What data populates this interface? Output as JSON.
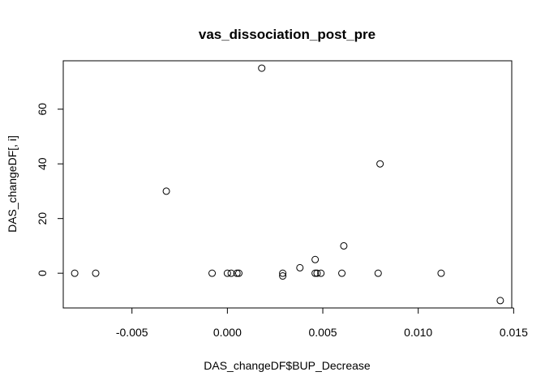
{
  "chart_data": {
    "type": "scatter",
    "title": "vas_dissociation_post_pre",
    "xlabel": "DAS_changeDF$BUP_Decrease",
    "ylabel": "DAS_changeDF[, i]",
    "xlim": [
      -0.0086,
      0.0149
    ],
    "ylim": [
      -12.7,
      77.7
    ],
    "xticks": [
      -0.005,
      0.0,
      0.005,
      0.01,
      0.015
    ],
    "xtick_labels": [
      "-0.005",
      "0.000",
      "0.005",
      "0.010",
      "0.015"
    ],
    "yticks": [
      0,
      20,
      40,
      60
    ],
    "ytick_labels": [
      "0",
      "20",
      "40",
      "60"
    ],
    "grid": false,
    "legend": "none",
    "points": [
      {
        "x": -0.008,
        "y": 0
      },
      {
        "x": -0.0069,
        "y": 0
      },
      {
        "x": -0.0032,
        "y": 30
      },
      {
        "x": -0.0008,
        "y": 0
      },
      {
        "x": 0.0,
        "y": 0
      },
      {
        "x": 0.0002,
        "y": 0
      },
      {
        "x": 0.0005,
        "y": 0
      },
      {
        "x": 0.0006,
        "y": 0
      },
      {
        "x": 0.0018,
        "y": 75
      },
      {
        "x": 0.0029,
        "y": 0
      },
      {
        "x": 0.0029,
        "y": -1
      },
      {
        "x": 0.0038,
        "y": 2
      },
      {
        "x": 0.0046,
        "y": 5
      },
      {
        "x": 0.0046,
        "y": 0
      },
      {
        "x": 0.0047,
        "y": 0
      },
      {
        "x": 0.0049,
        "y": 0
      },
      {
        "x": 0.006,
        "y": 0
      },
      {
        "x": 0.0061,
        "y": 10
      },
      {
        "x": 0.0079,
        "y": 0
      },
      {
        "x": 0.008,
        "y": 40
      },
      {
        "x": 0.0112,
        "y": 0
      },
      {
        "x": 0.0143,
        "y": -10
      }
    ]
  }
}
